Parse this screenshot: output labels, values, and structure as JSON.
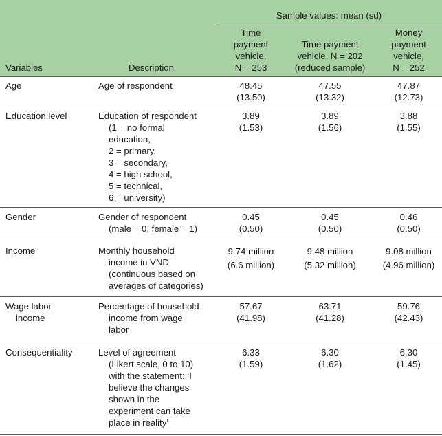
{
  "header": {
    "group_label": "Sample values: mean (sd)",
    "col_variables": "Variables",
    "col_description": "Description",
    "col1": "Time\npayment\nvehicle,\nN = 253",
    "col2": "Time payment\nvehicle, N = 202\n(reduced sample)",
    "col3": "Money\npayment\nvehicle,\nN = 252"
  },
  "rows": [
    {
      "variable": "Age",
      "description": "Age of respondent",
      "v1": "48.45\n(13.50)",
      "v2": "47.55\n(13.32)",
      "v3": "47.87\n(12.73)"
    },
    {
      "variable": "Education level",
      "description": "Education of respondent\n(1 = no formal\neducation,\n2 = primary,\n3 = secondary,\n4 = high school,\n5 = technical,\n6 = university)",
      "v1": "3.89\n(1.53)",
      "v2": "3.89\n(1.56)",
      "v3": "3.88\n(1.55)"
    },
    {
      "variable": "Gender",
      "description": "Gender of respondent\n(male = 0, female = 1)",
      "v1": "0.45\n(0.50)",
      "v2": "0.45\n(0.50)",
      "v3": "0.46\n(0.50)"
    },
    {
      "variable": "Income",
      "description": "Monthly household\nincome in VND\n(continuous based on\naverages of categories)",
      "v1": "9.74 million\n(6.6 million)",
      "v2": "9.48 million\n(5.32 million)",
      "v3": "9.08 million\n(4.96 million)"
    },
    {
      "variable": "Wage labor\nincome",
      "description": "Percentage of household\nincome from wage\nlabor",
      "v1": "57.67\n(41.98)",
      "v2": "63.71\n(41.28)",
      "v3": "59.76\n(42.43)"
    },
    {
      "variable": "Consequentiality",
      "description": "Level of agreement\n(Likert scale, 0 to 10)\nwith the statement: ‘I\nbelieve the changes\nshown in the\nexperiment can take\nplace in reality’",
      "v1": "6.33\n(1.59)",
      "v2": "6.30\n(1.62)",
      "v3": "6.30\n(1.45)"
    }
  ]
}
